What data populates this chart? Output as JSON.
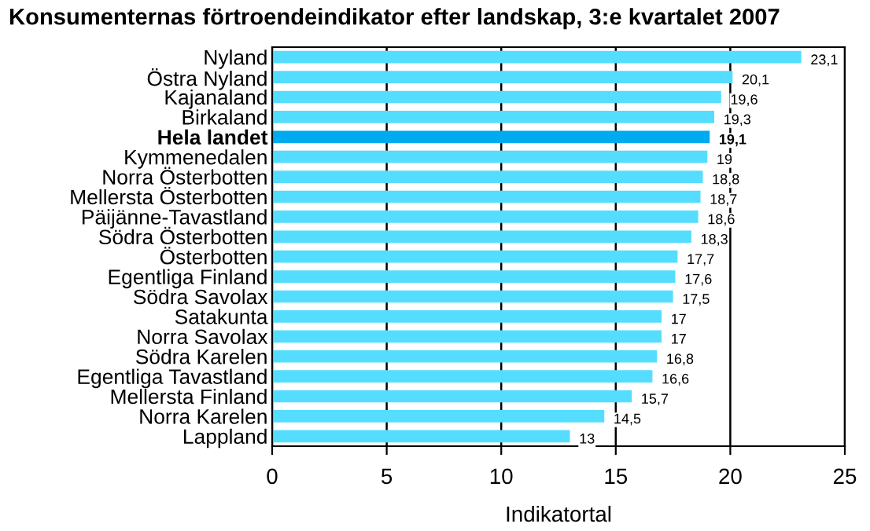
{
  "chart_data": {
    "type": "bar",
    "orientation": "horizontal",
    "title": "Konsumenternas förtroendeindikator efter landskap, 3:e kvartalet 2007",
    "xlabel": "Indikatortal",
    "categories": [
      "Nyland",
      "Östra Nyland",
      "Kajanaland",
      "Birkaland",
      "Hela landet",
      "Kymmenedalen",
      "Norra Österbotten",
      "Mellersta Österbotten",
      "Päijänne-Tavastland",
      "Södra Österbotten",
      "Österbotten",
      "Egentliga Finland",
      "Södra Savolax",
      "Satakunta",
      "Norra Savolax",
      "Södra Karelen",
      "Egentliga Tavastland",
      "Mellersta Finland",
      "Norra Karelen",
      "Lappland"
    ],
    "values": [
      23.1,
      20.1,
      19.6,
      19.3,
      19.1,
      19,
      18.8,
      18.7,
      18.6,
      18.3,
      17.7,
      17.6,
      17.5,
      17,
      17,
      16.8,
      16.6,
      15.7,
      14.5,
      13
    ],
    "value_labels": [
      "23,1",
      "20,1",
      "19,6",
      "19,3",
      "19,1",
      "19",
      "18,8",
      "18,7",
      "18,6",
      "18,3",
      "17,7",
      "17,6",
      "17,5",
      "17",
      "17",
      "16,8",
      "16,6",
      "15,7",
      "14,5",
      "13"
    ],
    "colors": [
      "#55ddff",
      "#55ddff",
      "#55ddff",
      "#55ddff",
      "#00aaee",
      "#55ddff",
      "#55ddff",
      "#55ddff",
      "#55ddff",
      "#55ddff",
      "#55ddff",
      "#55ddff",
      "#55ddff",
      "#55ddff",
      "#55ddff",
      "#55ddff",
      "#55ddff",
      "#55ddff",
      "#55ddff",
      "#55ddff"
    ],
    "xlim": [
      0,
      25
    ],
    "xticks": [
      0,
      5,
      10,
      15,
      20,
      25
    ],
    "grid": "x",
    "legend": false
  }
}
